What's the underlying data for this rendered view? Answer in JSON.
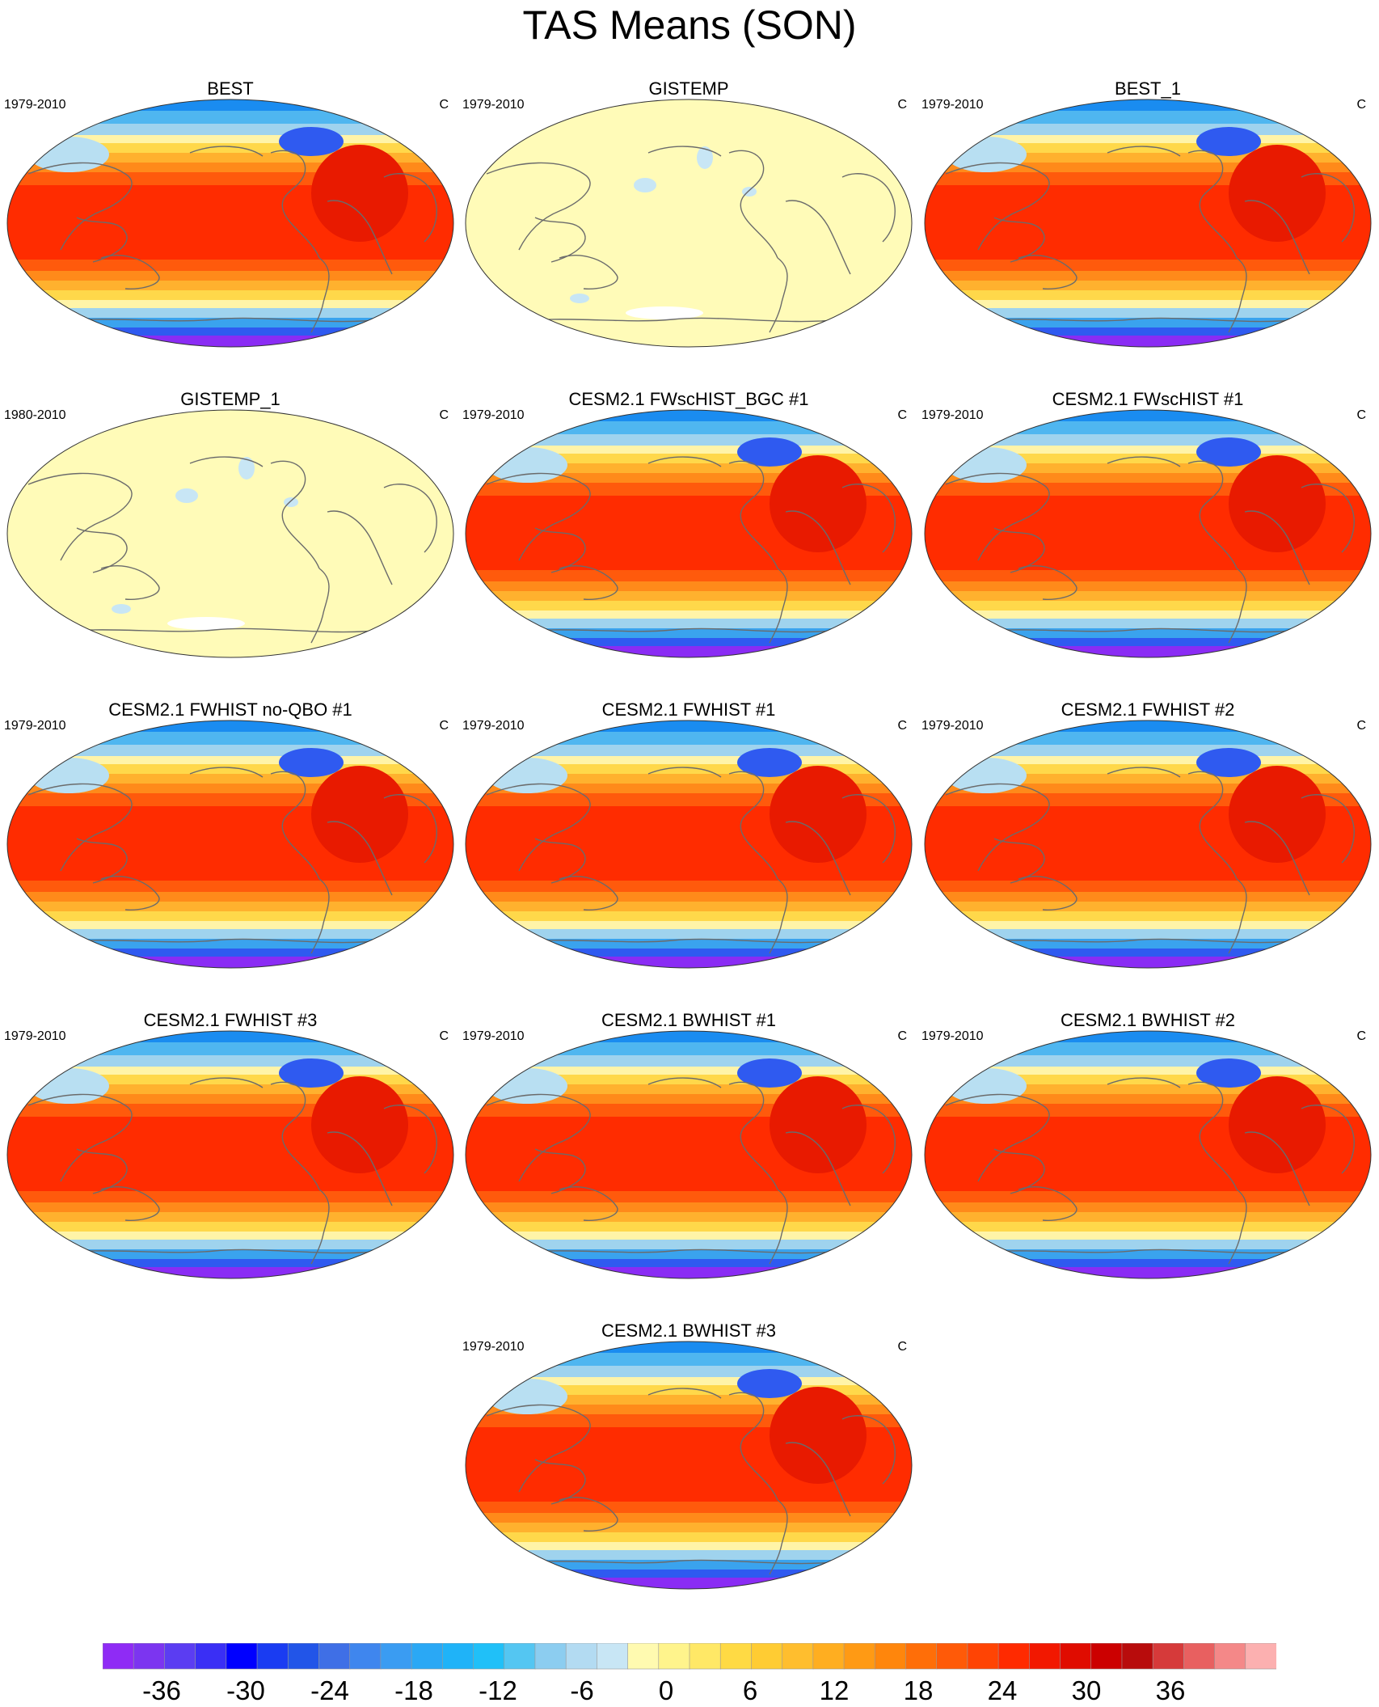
{
  "title": "TAS Means (SON)",
  "panels": [
    {
      "title": "BEST",
      "period": "1979-2010",
      "units": "C",
      "style": "full"
    },
    {
      "title": "GISTEMP",
      "period": "1979-2010",
      "units": "C",
      "style": "anomaly"
    },
    {
      "title": "BEST_1",
      "period": "1979-2010",
      "units": "C",
      "style": "full"
    },
    {
      "title": "GISTEMP_1",
      "period": "1980-2010",
      "units": "C",
      "style": "anomaly"
    },
    {
      "title": "CESM2.1 FWscHIST_BGC #1",
      "period": "1979-2010",
      "units": "C",
      "style": "full"
    },
    {
      "title": "CESM2.1 FWscHIST #1",
      "period": "1979-2010",
      "units": "C",
      "style": "full"
    },
    {
      "title": "CESM2.1 FWHIST no-QBO #1",
      "period": "1979-2010",
      "units": "C",
      "style": "full"
    },
    {
      "title": "CESM2.1 FWHIST #1",
      "period": "1979-2010",
      "units": "C",
      "style": "full"
    },
    {
      "title": "CESM2.1 FWHIST #2",
      "period": "1979-2010",
      "units": "C",
      "style": "full"
    },
    {
      "title": "CESM2.1 FWHIST #3",
      "period": "1979-2010",
      "units": "C",
      "style": "full"
    },
    {
      "title": "CESM2.1 BWHIST #1",
      "period": "1979-2010",
      "units": "C",
      "style": "full"
    },
    {
      "title": "CESM2.1 BWHIST #2",
      "period": "1979-2010",
      "units": "C",
      "style": "full"
    },
    {
      "title": "CESM2.1 BWHIST #3",
      "period": "1979-2010",
      "units": "C",
      "style": "full"
    }
  ],
  "colorbar": {
    "labels": [
      "-36",
      "-30",
      "-24",
      "-18",
      "-12",
      "-6",
      "0",
      "6",
      "12",
      "18",
      "24",
      "30",
      "36"
    ],
    "colors": [
      "#8f2bf5",
      "#7c35f0",
      "#5b3df2",
      "#3a2ff5",
      "#0000ff",
      "#1a3cf2",
      "#2255e8",
      "#3f6fe6",
      "#3f86ee",
      "#3a9cf2",
      "#2aa8f5",
      "#1fb3f8",
      "#20c0f8",
      "#54c6f2",
      "#8ccdf0",
      "#b3dbf2",
      "#c8e6f5",
      "#fffab0",
      "#fff48c",
      "#ffe866",
      "#ffda44",
      "#ffcc33",
      "#ffbe2e",
      "#ffae20",
      "#ff9a14",
      "#ff860c",
      "#ff6e08",
      "#ff5a08",
      "#ff4404",
      "#ff2a00",
      "#f21800",
      "#e00c00",
      "#cc0000",
      "#b80c0c",
      "#d63a3a",
      "#e86060",
      "#f48888",
      "#fcb0b0"
    ]
  }
}
